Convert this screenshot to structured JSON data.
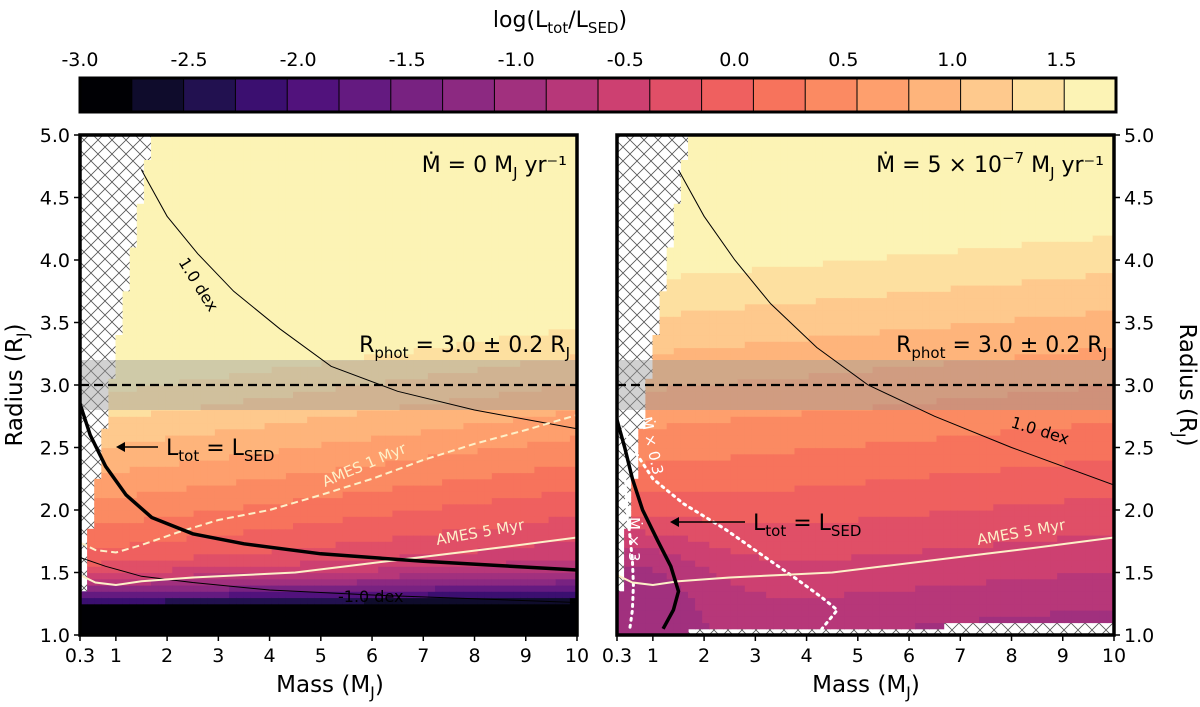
{
  "chart_data": {
    "type": "heatmap",
    "colorbar": {
      "label_main": "log(L",
      "label_sub1": "tot",
      "label_mid": "/L",
      "label_sub2": "SED",
      "label_end": ")",
      "boundaries": [
        -3.0,
        -2.75,
        -2.5,
        -2.25,
        -2.0,
        -1.75,
        -1.5,
        -1.25,
        -1.0,
        -0.75,
        -0.5,
        -0.25,
        0.0,
        0.25,
        0.5,
        0.75,
        1.0,
        1.25,
        1.5,
        1.75
      ],
      "tick_labels": [
        "-3.0",
        "-2.5",
        "-2.0",
        "-1.5",
        "-1.0",
        "-0.5",
        "0.0",
        "0.5",
        "1.0",
        "1.5"
      ],
      "colors": [
        "#000004",
        "#0f0c2c",
        "#221150",
        "#3b0f70",
        "#51127c",
        "#641a80",
        "#782281",
        "#8c2981",
        "#a1307e",
        "#b73779",
        "#cd4071",
        "#e04f67",
        "#ef605f",
        "#f7735c",
        "#fb8a62",
        "#fe9f6d",
        "#feb47b",
        "#fec98d",
        "#fde0a0",
        "#fcf3b5"
      ]
    },
    "axes": {
      "x_ticks": [
        "0.3",
        "1",
        "2",
        "3",
        "4",
        "5",
        "6",
        "7",
        "8",
        "9",
        "10"
      ],
      "x_tick_values": [
        0.3,
        1,
        2,
        3,
        4,
        5,
        6,
        7,
        8,
        9,
        10
      ],
      "y_ticks": [
        "1.0",
        "1.5",
        "2.0",
        "2.5",
        "3.0",
        "3.5",
        "4.0",
        "4.5",
        "5.0"
      ],
      "y_tick_values": [
        1.0,
        1.5,
        2.0,
        2.5,
        3.0,
        3.5,
        4.0,
        4.5,
        5.0
      ],
      "xlim": [
        0.3,
        10
      ],
      "ylim": [
        1.0,
        5.0
      ],
      "xlabel": "Mass (M",
      "xlabel_sub": "J",
      "xlabel_end": ")",
      "ylabel": "Radius (R",
      "ylabel_sub": "J",
      "ylabel_end": ")"
    },
    "panels": [
      {
        "name": "no-accretion",
        "mdot_text": "Ṁ = 0 M",
        "mdot_sub": "J",
        "mdot_end": " yr⁻¹",
        "rphot_text": "R",
        "rphot_sub": "phot",
        "rphot_mid": " = 3.0 ± 0.2 R",
        "rphot_sub2": "J",
        "equality_label": "L",
        "equality_sub1": "tot",
        "equality_mid": " = L",
        "equality_sub2": "SED",
        "contour_label_pos": "1.0 dex",
        "contour_label_neg": "-1.0 dex",
        "ames_1myr_label": "AMES 1 Myr",
        "ames_5myr_label": "AMES 5 Myr",
        "rphot_band": [
          2.8,
          3.2
        ],
        "rphot_value": 3.0,
        "l_equal_curve": [
          [
            0.3,
            2.85
          ],
          [
            0.5,
            2.6
          ],
          [
            0.8,
            2.35
          ],
          [
            1.2,
            2.12
          ],
          [
            1.7,
            1.94
          ],
          [
            2.5,
            1.81
          ],
          [
            3.5,
            1.73
          ],
          [
            5,
            1.65
          ],
          [
            7,
            1.59
          ],
          [
            10,
            1.52
          ]
        ],
        "contour_plus1": [
          [
            1.5,
            4.72
          ],
          [
            2.0,
            4.35
          ],
          [
            2.6,
            4.05
          ],
          [
            3.3,
            3.75
          ],
          [
            4.2,
            3.45
          ],
          [
            5.2,
            3.15
          ],
          [
            6.5,
            2.95
          ],
          [
            8.0,
            2.8
          ],
          [
            10,
            2.65
          ]
        ],
        "contour_minus1": [
          [
            0.3,
            1.62
          ],
          [
            0.8,
            1.55
          ],
          [
            1.5,
            1.47
          ],
          [
            2.5,
            1.42
          ],
          [
            4,
            1.36
          ],
          [
            6,
            1.32
          ],
          [
            8,
            1.29
          ],
          [
            10,
            1.26
          ]
        ],
        "ames_1myr": [
          [
            0.3,
            1.74
          ],
          [
            0.6,
            1.68
          ],
          [
            1.0,
            1.66
          ],
          [
            1.5,
            1.72
          ],
          [
            2.2,
            1.82
          ],
          [
            3.0,
            1.92
          ],
          [
            4.0,
            2.0
          ],
          [
            5.0,
            2.12
          ],
          [
            6.0,
            2.25
          ],
          [
            7.0,
            2.4
          ],
          [
            8.0,
            2.53
          ],
          [
            9.0,
            2.64
          ],
          [
            10,
            2.76
          ]
        ],
        "ames_5myr": [
          [
            0.3,
            1.48
          ],
          [
            0.6,
            1.42
          ],
          [
            1.0,
            1.4
          ],
          [
            1.5,
            1.43
          ],
          [
            2.5,
            1.46
          ],
          [
            3.5,
            1.48
          ],
          [
            4.5,
            1.5
          ],
          [
            5.5,
            1.55
          ],
          [
            6.5,
            1.6
          ],
          [
            7.5,
            1.65
          ],
          [
            8.5,
            1.7
          ],
          [
            10,
            1.78
          ]
        ]
      },
      {
        "name": "with-accretion",
        "mdot_text": "Ṁ = 5 × 10",
        "mdot_sup": "−7",
        "mdot_end_prefix": " M",
        "mdot_sub": "J",
        "mdot_end": " yr⁻¹",
        "rphot_text": "R",
        "rphot_sub": "phot",
        "rphot_mid": " = 3.0 ± 0.2 R",
        "rphot_sub2": "J",
        "equality_label": "L",
        "equality_sub1": "tot",
        "equality_mid": " = L",
        "equality_sub2": "SED",
        "contour_label_pos": "1.0 dex",
        "mdot_x03_label": "Ṁ × 0.3",
        "mdot_x3_label": "Ṁ × 3",
        "ames_5myr_label": "AMES 5 Myr",
        "rphot_band": [
          2.8,
          3.2
        ],
        "rphot_value": 3.0,
        "l_equal_curve": [
          [
            0.3,
            2.72
          ],
          [
            0.45,
            2.5
          ],
          [
            0.6,
            2.25
          ],
          [
            0.8,
            2.0
          ],
          [
            1.1,
            1.75
          ],
          [
            1.35,
            1.55
          ],
          [
            1.5,
            1.35
          ],
          [
            1.4,
            1.2
          ],
          [
            1.2,
            1.05
          ]
        ],
        "contour_plus1": [
          [
            1.5,
            4.72
          ],
          [
            2.0,
            4.35
          ],
          [
            2.6,
            4.0
          ],
          [
            3.3,
            3.65
          ],
          [
            4.2,
            3.3
          ],
          [
            5.2,
            3.0
          ],
          [
            6.5,
            2.75
          ],
          [
            8.0,
            2.5
          ],
          [
            10,
            2.2
          ]
        ],
        "mdot_x03": [
          [
            0.3,
            2.75
          ],
          [
            0.6,
            2.5
          ],
          [
            1.0,
            2.25
          ],
          [
            1.6,
            2.05
          ],
          [
            2.4,
            1.85
          ],
          [
            3.2,
            1.62
          ],
          [
            3.8,
            1.45
          ],
          [
            4.3,
            1.3
          ],
          [
            4.6,
            1.2
          ],
          [
            4.3,
            1.05
          ]
        ],
        "mdot_x3": [
          [
            0.45,
            2.25
          ],
          [
            0.5,
            2.0
          ],
          [
            0.55,
            1.8
          ],
          [
            0.6,
            1.6
          ],
          [
            0.62,
            1.4
          ],
          [
            0.6,
            1.2
          ],
          [
            0.55,
            1.05
          ]
        ],
        "ames_5myr": [
          [
            0.3,
            1.48
          ],
          [
            0.6,
            1.42
          ],
          [
            1.0,
            1.4
          ],
          [
            1.5,
            1.43
          ],
          [
            2.5,
            1.46
          ],
          [
            3.5,
            1.48
          ],
          [
            4.5,
            1.5
          ],
          [
            5.5,
            1.55
          ],
          [
            6.5,
            1.6
          ],
          [
            7.5,
            1.65
          ],
          [
            8.5,
            1.7
          ],
          [
            10,
            1.78
          ]
        ]
      }
    ]
  }
}
